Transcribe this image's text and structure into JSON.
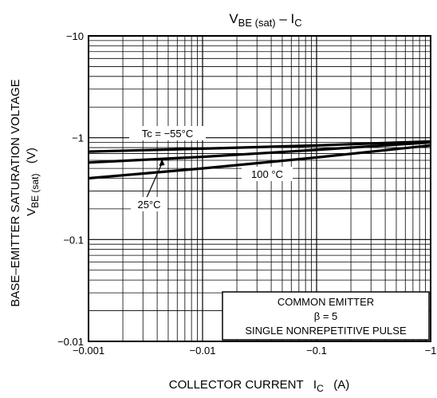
{
  "chart_data": {
    "type": "line",
    "title": "V",
    "title_sub": "BE (sat)",
    "title_tail": " – I",
    "title_tail_sub": "C",
    "xlabel": "COLLECTOR CURRENT   I",
    "xlabel_sub": "C",
    "xlabel_tail": "   (A)",
    "ylabel_line1": "BASE–EMITTER SATURATION VOLTAGE",
    "ylabel_line2_main": "V",
    "ylabel_line2_sub": "BE (sat)",
    "ylabel_line2_tail": "   (V)",
    "x_scale": "log",
    "y_scale": "log",
    "xlim": [
      -0.001,
      -1
    ],
    "ylim": [
      -0.01,
      -10
    ],
    "x_ticks": [
      {
        "value": -0.001,
        "label": "−0.001"
      },
      {
        "value": -0.01,
        "label": "−0.01"
      },
      {
        "value": -0.1,
        "label": "−0.1"
      },
      {
        "value": -1,
        "label": "−1"
      }
    ],
    "y_ticks": [
      {
        "value": -0.01,
        "label": "−0.01"
      },
      {
        "value": -0.1,
        "label": "−0.1"
      },
      {
        "value": -1,
        "label": "−1"
      },
      {
        "value": -10,
        "label": "−10"
      }
    ],
    "grid": true,
    "series": [
      {
        "name": "Tc = −55°C",
        "x": [
          -0.001,
          -0.01,
          -0.1,
          -1
        ],
        "y": [
          -0.73,
          -0.78,
          -0.84,
          -0.92
        ]
      },
      {
        "name": "25°C",
        "x": [
          -0.001,
          -0.01,
          -0.1,
          -1
        ],
        "y": [
          -0.57,
          -0.65,
          -0.76,
          -0.9
        ]
      },
      {
        "name": "100 °C",
        "x": [
          -0.001,
          -0.01,
          -0.1,
          -1
        ],
        "y": [
          -0.4,
          -0.5,
          -0.64,
          -0.84
        ]
      }
    ],
    "annotation": {
      "lines": [
        "COMMON EMITTER",
        "β = 5",
        "SINGLE NONREPETITIVE PULSE"
      ],
      "position": "bottom-right"
    }
  }
}
